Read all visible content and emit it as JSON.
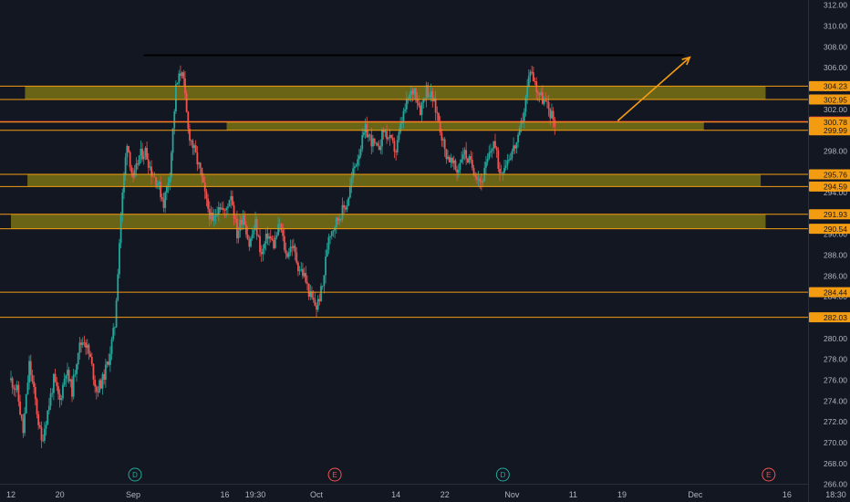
{
  "chart_data": {
    "type": "candlestick",
    "title": "",
    "xlabel": "",
    "ylabel": "",
    "ylim": [
      264.3,
      312.5
    ],
    "grid": false,
    "y_ticks": [
      266,
      268,
      270,
      272,
      274,
      276,
      278,
      280,
      282,
      284,
      286,
      288,
      290,
      292,
      294,
      296,
      298,
      300,
      302,
      304,
      306,
      308,
      310,
      312
    ],
    "x_ticks": [
      {
        "label": "12",
        "day": 0
      },
      {
        "label": "20",
        "day": 8
      },
      {
        "label": "Sep",
        "day": 20
      },
      {
        "label": "16",
        "day": 35
      },
      {
        "label": "19:30",
        "day": 40
      },
      {
        "label": "Oct",
        "day": 50
      },
      {
        "label": "14",
        "day": 63
      },
      {
        "label": "22",
        "day": 71
      },
      {
        "label": "Nov",
        "day": 82
      },
      {
        "label": "11",
        "day": 92
      },
      {
        "label": "19",
        "day": 100
      },
      {
        "label": "Dec",
        "day": 112
      },
      {
        "label": "16",
        "day": 127
      },
      {
        "label": "18:30",
        "day": 135
      }
    ],
    "events": [
      {
        "label": "D",
        "day": 20.3,
        "color": "#26a69a"
      },
      {
        "label": "E",
        "day": 53,
        "color": "#ef5350"
      },
      {
        "label": "D",
        "day": 80.5,
        "color": "#26a69a"
      },
      {
        "label": "E",
        "day": 124,
        "color": "#ef5350"
      }
    ],
    "anchors": [
      [
        0,
        276
      ],
      [
        1,
        275
      ],
      [
        2,
        271
      ],
      [
        3,
        277.5
      ],
      [
        4,
        274
      ],
      [
        5,
        270
      ],
      [
        6,
        273
      ],
      [
        7,
        276
      ],
      [
        8,
        274
      ],
      [
        9,
        277
      ],
      [
        10,
        275
      ],
      [
        11,
        279
      ],
      [
        12,
        280
      ],
      [
        13,
        278
      ],
      [
        14,
        275
      ],
      [
        15,
        276
      ],
      [
        16,
        278
      ],
      [
        17,
        281.3
      ],
      [
        18,
        292
      ],
      [
        19,
        299
      ],
      [
        20,
        295
      ],
      [
        21,
        297.5
      ],
      [
        22,
        298
      ],
      [
        23,
        296
      ],
      [
        24,
        295
      ],
      [
        25,
        293
      ],
      [
        26,
        296
      ],
      [
        27,
        304
      ],
      [
        28,
        306
      ],
      [
        29,
        300
      ],
      [
        30,
        298
      ],
      [
        31,
        296
      ],
      [
        32,
        293
      ],
      [
        33,
        291
      ],
      [
        34,
        293
      ],
      [
        35,
        292
      ],
      [
        36,
        294
      ],
      [
        37,
        290
      ],
      [
        38,
        292
      ],
      [
        39,
        289
      ],
      [
        40,
        291
      ],
      [
        41,
        288
      ],
      [
        42,
        290
      ],
      [
        43,
        289
      ],
      [
        44,
        291
      ],
      [
        45,
        288
      ],
      [
        46,
        289
      ],
      [
        47,
        287
      ],
      [
        48,
        286
      ],
      [
        49,
        284
      ],
      [
        50,
        283
      ],
      [
        51,
        285
      ],
      [
        52,
        290
      ],
      [
        53,
        291
      ],
      [
        54,
        292
      ],
      [
        55,
        293
      ],
      [
        56,
        296
      ],
      [
        57,
        298
      ],
      [
        58,
        300
      ],
      [
        59,
        299
      ],
      [
        60,
        298
      ],
      [
        61,
        300
      ],
      [
        62,
        299
      ],
      [
        63,
        298
      ],
      [
        64,
        301
      ],
      [
        65,
        303
      ],
      [
        66,
        304
      ],
      [
        67,
        302
      ],
      [
        68,
        304
      ],
      [
        69,
        303
      ],
      [
        70,
        301
      ],
      [
        71,
        298
      ],
      [
        72,
        297
      ],
      [
        73,
        296
      ],
      [
        74,
        298
      ],
      [
        75,
        297
      ],
      [
        76,
        296
      ],
      [
        77,
        295
      ],
      [
        78,
        297
      ],
      [
        79,
        299
      ],
      [
        80,
        296
      ],
      [
        81,
        297
      ],
      [
        82,
        298
      ],
      [
        83,
        299
      ],
      [
        84,
        302
      ],
      [
        85,
        306
      ],
      [
        86,
        304
      ],
      [
        87,
        303
      ],
      [
        88,
        302
      ],
      [
        89,
        300.78
      ]
    ],
    "horizontal_levels": [
      {
        "value": 307.2,
        "color": "#000000",
        "label": "",
        "xstart_day": 21.7,
        "xend_day": 110.2
      },
      {
        "value": 304.23,
        "color": "#f39c12",
        "label": "304.23"
      },
      {
        "value": 302.95,
        "color": "#f39c12",
        "label": "302.95"
      },
      {
        "value": 300.83,
        "color": "#f23645",
        "label": "300.83"
      },
      {
        "value": 300.78,
        "color": "#f39c12",
        "label": "300.78"
      },
      {
        "value": 299.99,
        "color": "#f39c12",
        "label": "299.99"
      },
      {
        "value": 295.76,
        "color": "#f39c12",
        "label": "295.76"
      },
      {
        "value": 294.59,
        "color": "#f39c12",
        "label": "294.59"
      },
      {
        "value": 291.93,
        "color": "#f39c12",
        "label": "291.93"
      },
      {
        "value": 290.54,
        "color": "#f39c12",
        "label": "290.54"
      },
      {
        "value": 284.44,
        "color": "#f39c12",
        "label": "284.44"
      },
      {
        "value": 282.03,
        "color": "#f39c12",
        "label": "282.03"
      }
    ],
    "zones": [
      {
        "top": 304.23,
        "bottom": 302.95,
        "xstart_day": 2.3,
        "xend_day": 123.5
      },
      {
        "top": 300.83,
        "bottom": 300.0,
        "xstart_day": 35.3,
        "xend_day": 113.4
      },
      {
        "top": 295.76,
        "bottom": 294.59,
        "xstart_day": 2.7,
        "xend_day": 122.7
      },
      {
        "top": 291.93,
        "bottom": 290.54,
        "xstart_day": 0,
        "xend_day": 123.5
      }
    ],
    "arrow": {
      "from": {
        "day": 99.3,
        "value": 300.9
      },
      "to": {
        "day": 111.1,
        "value": 307.0
      },
      "color": "#f39c12"
    },
    "colors": {
      "up": "#26a69a",
      "down": "#ef5350",
      "zone": "#b3a40f",
      "background": "#131722",
      "axis_text": "#b2b5be"
    }
  }
}
